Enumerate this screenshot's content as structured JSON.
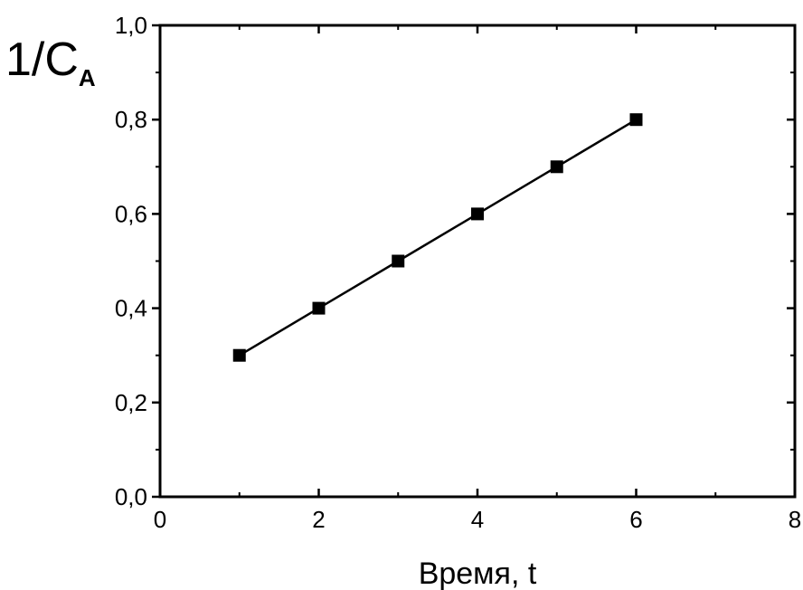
{
  "chart_data": {
    "type": "line",
    "title": "",
    "xlabel": "Время, t",
    "ylabel": {
      "main": "1/C",
      "subscript": "A"
    },
    "xlim": [
      0,
      8
    ],
    "ylim": [
      0.0,
      1.0
    ],
    "x_ticks": [
      0,
      2,
      4,
      6,
      8
    ],
    "x_tick_labels": [
      "0",
      "2",
      "4",
      "6",
      "8"
    ],
    "y_ticks": [
      0.0,
      0.2,
      0.4,
      0.6,
      0.8,
      1.0
    ],
    "y_tick_labels": [
      "0,0",
      "0,2",
      "0,4",
      "0,6",
      "0,8",
      "1,0"
    ],
    "grid": false,
    "marker": "square",
    "color": "#000000",
    "series": [
      {
        "x": [
          1,
          2,
          3,
          4,
          5,
          6
        ],
        "y": [
          0.3,
          0.4,
          0.5,
          0.6,
          0.7,
          0.8
        ]
      }
    ]
  }
}
